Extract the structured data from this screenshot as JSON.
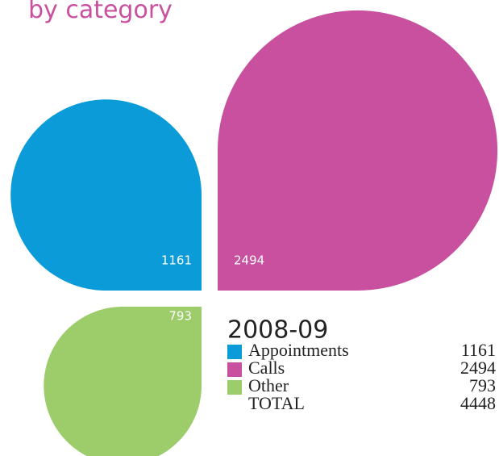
{
  "chart_data": {
    "type": "petal",
    "title": "by category",
    "legend_title": "2008-09",
    "categories": [
      "Appointments",
      "Calls",
      "Other"
    ],
    "values": [
      1161,
      2494,
      793
    ],
    "colors": [
      "#0b9bd8",
      "#c8509e",
      "#9dcc6a"
    ],
    "total": {
      "label": "TOTAL",
      "value": 4448
    }
  }
}
